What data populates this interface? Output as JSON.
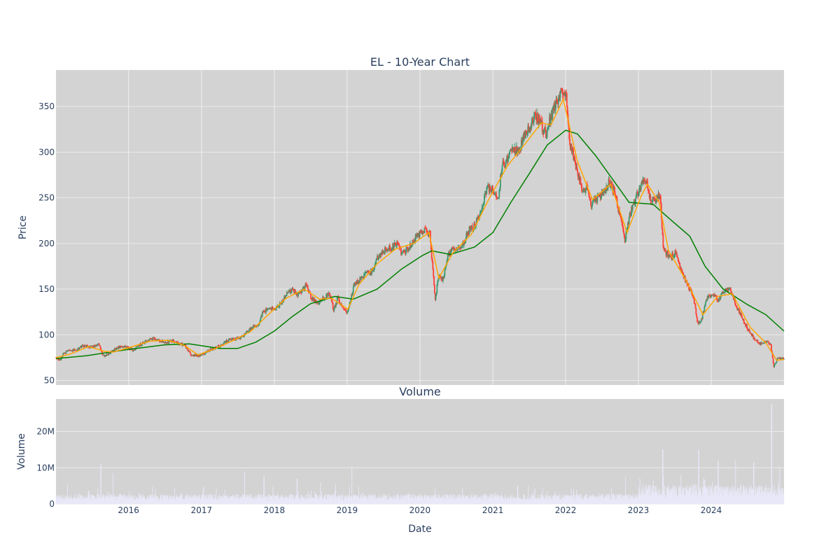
{
  "chart_data": [
    {
      "type": "candlestick",
      "title": "EL - 10-Year Chart",
      "xlabel": "",
      "ylabel": "Price",
      "xlim": [
        "2015-01-02",
        "2024-12-31"
      ],
      "ylim": [
        45,
        390
      ],
      "y_ticks": [
        50,
        100,
        150,
        200,
        250,
        300,
        350
      ],
      "grid": true,
      "background": "#d3d3d3",
      "colors": {
        "up": "#3d9970",
        "down": "#ff4136",
        "ma_short": "#ffa500",
        "ma_long": "#008000"
      },
      "price_path": [
        [
          "2015-01-02",
          75
        ],
        [
          "2015-01-20",
          72
        ],
        [
          "2015-02-10",
          80
        ],
        [
          "2015-03-15",
          83
        ],
        [
          "2015-04-15",
          84
        ],
        [
          "2015-05-20",
          88
        ],
        [
          "2015-06-20",
          87
        ],
        [
          "2015-07-20",
          88
        ],
        [
          "2015-08-05",
          90
        ],
        [
          "2015-08-25",
          77
        ],
        [
          "2015-09-15",
          78
        ],
        [
          "2015-10-15",
          83
        ],
        [
          "2015-11-10",
          86
        ],
        [
          "2015-12-10",
          87
        ],
        [
          "2016-01-05",
          85
        ],
        [
          "2016-01-25",
          83
        ],
        [
          "2016-02-20",
          88
        ],
        [
          "2016-03-20",
          92
        ],
        [
          "2016-04-20",
          95
        ],
        [
          "2016-05-10",
          96
        ],
        [
          "2016-06-10",
          93
        ],
        [
          "2016-07-10",
          92
        ],
        [
          "2016-08-10",
          93
        ],
        [
          "2016-09-10",
          90
        ],
        [
          "2016-10-10",
          88
        ],
        [
          "2016-11-10",
          78
        ],
        [
          "2016-12-10",
          77
        ],
        [
          "2017-01-10",
          79
        ],
        [
          "2017-02-15",
          84
        ],
        [
          "2017-03-15",
          86
        ],
        [
          "2017-04-15",
          89
        ],
        [
          "2017-05-15",
          94
        ],
        [
          "2017-06-15",
          96
        ],
        [
          "2017-07-15",
          97
        ],
        [
          "2017-08-15",
          103
        ],
        [
          "2017-09-15",
          108
        ],
        [
          "2017-10-15",
          110
        ],
        [
          "2017-11-01",
          124
        ],
        [
          "2017-12-01",
          128
        ],
        [
          "2018-01-05",
          128
        ],
        [
          "2018-02-05",
          135
        ],
        [
          "2018-03-05",
          145
        ],
        [
          "2018-04-05",
          150
        ],
        [
          "2018-04-25",
          143
        ],
        [
          "2018-05-25",
          150
        ],
        [
          "2018-06-10",
          155
        ],
        [
          "2018-07-05",
          140
        ],
        [
          "2018-08-05",
          135
        ],
        [
          "2018-09-05",
          140
        ],
        [
          "2018-10-05",
          145
        ],
        [
          "2018-10-25",
          128
        ],
        [
          "2018-11-15",
          140
        ],
        [
          "2018-12-10",
          128
        ],
        [
          "2019-01-05",
          125
        ],
        [
          "2019-02-05",
          155
        ],
        [
          "2019-03-05",
          160
        ],
        [
          "2019-04-05",
          168
        ],
        [
          "2019-05-05",
          170
        ],
        [
          "2019-06-05",
          185
        ],
        [
          "2019-07-05",
          192
        ],
        [
          "2019-08-05",
          195
        ],
        [
          "2019-09-05",
          200
        ],
        [
          "2019-10-05",
          188
        ],
        [
          "2019-11-05",
          195
        ],
        [
          "2019-12-05",
          205
        ],
        [
          "2020-01-20",
          215
        ],
        [
          "2020-02-20",
          210
        ],
        [
          "2020-03-18",
          140
        ],
        [
          "2020-04-05",
          165
        ],
        [
          "2020-04-25",
          160
        ],
        [
          "2020-05-20",
          185
        ],
        [
          "2020-06-10",
          195
        ],
        [
          "2020-07-05",
          192
        ],
        [
          "2020-08-05",
          200
        ],
        [
          "2020-09-05",
          215
        ],
        [
          "2020-10-05",
          220
        ],
        [
          "2020-11-05",
          240
        ],
        [
          "2020-12-05",
          262
        ],
        [
          "2021-01-05",
          258
        ],
        [
          "2021-01-25",
          245
        ],
        [
          "2021-02-15",
          285
        ],
        [
          "2021-03-15",
          292
        ],
        [
          "2021-04-15",
          305
        ],
        [
          "2021-05-10",
          300
        ],
        [
          "2021-06-05",
          315
        ],
        [
          "2021-07-05",
          328
        ],
        [
          "2021-08-05",
          340
        ],
        [
          "2021-09-05",
          328
        ],
        [
          "2021-09-25",
          320
        ],
        [
          "2021-10-20",
          340
        ],
        [
          "2021-11-15",
          355
        ],
        [
          "2021-12-15",
          370
        ],
        [
          "2022-01-05",
          358
        ],
        [
          "2022-01-20",
          310
        ],
        [
          "2022-02-10",
          295
        ],
        [
          "2022-03-05",
          275
        ],
        [
          "2022-03-25",
          258
        ],
        [
          "2022-04-15",
          262
        ],
        [
          "2022-05-10",
          240
        ],
        [
          "2022-05-30",
          248
        ],
        [
          "2022-06-20",
          250
        ],
        [
          "2022-07-10",
          255
        ],
        [
          "2022-08-05",
          268
        ],
        [
          "2022-09-05",
          255
        ],
        [
          "2022-10-05",
          225
        ],
        [
          "2022-10-25",
          205
        ],
        [
          "2022-11-20",
          232
        ],
        [
          "2022-12-20",
          250
        ],
        [
          "2023-01-20",
          268
        ],
        [
          "2023-02-10",
          270
        ],
        [
          "2023-03-05",
          245
        ],
        [
          "2023-04-01",
          248
        ],
        [
          "2023-04-20",
          255
        ],
        [
          "2023-05-05",
          195
        ],
        [
          "2023-06-05",
          185
        ],
        [
          "2023-07-05",
          190
        ],
        [
          "2023-08-05",
          170
        ],
        [
          "2023-09-05",
          155
        ],
        [
          "2023-10-05",
          140
        ],
        [
          "2023-10-25",
          112
        ],
        [
          "2023-11-15",
          118
        ],
        [
          "2023-12-10",
          140
        ],
        [
          "2024-01-05",
          145
        ],
        [
          "2024-02-05",
          138
        ],
        [
          "2024-03-05",
          148
        ],
        [
          "2024-04-05",
          150
        ],
        [
          "2024-05-05",
          132
        ],
        [
          "2024-06-05",
          118
        ],
        [
          "2024-07-05",
          105
        ],
        [
          "2024-08-05",
          95
        ],
        [
          "2024-09-05",
          90
        ],
        [
          "2024-10-05",
          92
        ],
        [
          "2024-10-25",
          90
        ],
        [
          "2024-11-10",
          65
        ],
        [
          "2024-12-01",
          75
        ],
        [
          "2024-12-31",
          74
        ]
      ],
      "ma_short_path": [
        [
          "2015-01-02",
          75
        ],
        [
          "2015-03-15",
          79
        ],
        [
          "2015-06-15",
          87
        ],
        [
          "2015-09-01",
          82
        ],
        [
          "2015-10-15",
          81
        ],
        [
          "2016-01-05",
          86
        ],
        [
          "2016-04-15",
          93
        ],
        [
          "2016-07-15",
          94
        ],
        [
          "2016-10-01",
          89
        ],
        [
          "2016-12-15",
          78
        ],
        [
          "2017-03-01",
          84
        ],
        [
          "2017-06-01",
          93
        ],
        [
          "2017-09-01",
          103
        ],
        [
          "2017-12-01",
          122
        ],
        [
          "2018-03-01",
          140
        ],
        [
          "2018-06-01",
          150
        ],
        [
          "2018-08-15",
          139
        ],
        [
          "2018-10-15",
          140
        ],
        [
          "2019-01-05",
          128
        ],
        [
          "2019-03-01",
          155
        ],
        [
          "2019-06-01",
          178
        ],
        [
          "2019-09-01",
          194
        ],
        [
          "2019-12-01",
          200
        ],
        [
          "2020-02-15",
          212
        ],
        [
          "2020-04-05",
          162
        ],
        [
          "2020-06-15",
          190
        ],
        [
          "2020-09-15",
          210
        ],
        [
          "2020-12-15",
          250
        ],
        [
          "2021-03-15",
          285
        ],
        [
          "2021-06-15",
          310
        ],
        [
          "2021-09-01",
          332
        ],
        [
          "2021-10-20",
          330
        ],
        [
          "2021-12-20",
          358
        ],
        [
          "2022-03-01",
          290
        ],
        [
          "2022-05-15",
          248
        ],
        [
          "2022-08-15",
          265
        ],
        [
          "2022-11-05",
          212
        ],
        [
          "2023-01-15",
          252
        ],
        [
          "2023-02-15",
          265
        ],
        [
          "2023-04-15",
          245
        ],
        [
          "2023-06-01",
          192
        ],
        [
          "2023-09-01",
          158
        ],
        [
          "2023-11-20",
          122
        ],
        [
          "2024-02-01",
          142
        ],
        [
          "2024-04-15",
          145
        ],
        [
          "2024-07-15",
          108
        ],
        [
          "2024-10-01",
          91
        ],
        [
          "2024-11-25",
          72
        ],
        [
          "2024-12-31",
          73
        ]
      ],
      "ma_long_path": [
        [
          "2015-01-02",
          74
        ],
        [
          "2015-06-01",
          77
        ],
        [
          "2016-01-01",
          84
        ],
        [
          "2016-07-01",
          89
        ],
        [
          "2016-11-01",
          90
        ],
        [
          "2017-04-01",
          85
        ],
        [
          "2017-07-01",
          85
        ],
        [
          "2017-10-01",
          92
        ],
        [
          "2018-01-01",
          104
        ],
        [
          "2018-04-01",
          120
        ],
        [
          "2018-07-01",
          134
        ],
        [
          "2018-11-01",
          142
        ],
        [
          "2019-02-01",
          139
        ],
        [
          "2019-06-01",
          150
        ],
        [
          "2019-10-01",
          172
        ],
        [
          "2020-01-15",
          187
        ],
        [
          "2020-03-01",
          192
        ],
        [
          "2020-06-01",
          188
        ],
        [
          "2020-10-01",
          196
        ],
        [
          "2021-01-01",
          212
        ],
        [
          "2021-04-01",
          245
        ],
        [
          "2021-07-01",
          276
        ],
        [
          "2021-10-01",
          308
        ],
        [
          "2022-01-01",
          324
        ],
        [
          "2022-03-01",
          320
        ],
        [
          "2022-06-01",
          296
        ],
        [
          "2022-09-01",
          268
        ],
        [
          "2022-11-15",
          245
        ],
        [
          "2023-03-15",
          243
        ],
        [
          "2023-06-01",
          228
        ],
        [
          "2023-09-15",
          208
        ],
        [
          "2023-12-01",
          175
        ],
        [
          "2024-03-01",
          150
        ],
        [
          "2024-07-01",
          133
        ],
        [
          "2024-10-01",
          122
        ],
        [
          "2024-12-31",
          104
        ]
      ]
    },
    {
      "type": "bar",
      "title": "Volume",
      "xlabel": "Date",
      "ylabel": "Volume",
      "xlim": [
        "2015-01-02",
        "2024-12-31"
      ],
      "ylim": [
        0,
        29
      ],
      "unit": "M",
      "y_ticks": [
        0,
        10,
        20
      ],
      "y_tick_labels": [
        "0",
        "10M",
        "20M"
      ],
      "x_ticks": [
        "2016-01-01",
        "2017-01-01",
        "2018-01-01",
        "2019-01-01",
        "2020-01-01",
        "2021-01-01",
        "2022-01-01",
        "2023-01-01",
        "2024-01-01"
      ],
      "x_tick_labels": [
        "2016",
        "2017",
        "2018",
        "2019",
        "2020",
        "2021",
        "2022",
        "2023",
        "2024"
      ],
      "grid": true,
      "background": "#d3d3d3",
      "bar_color": "#e9e8f8",
      "spikes": [
        [
          "2015-03-01",
          5.5
        ],
        [
          "2015-08-15",
          11
        ],
        [
          "2015-10-15",
          8.5
        ],
        [
          "2017-08-05",
          9
        ],
        [
          "2017-11-10",
          7.5
        ],
        [
          "2018-04-25",
          7
        ],
        [
          "2018-08-20",
          6
        ],
        [
          "2019-01-25",
          10.5
        ],
        [
          "2020-03-18",
          4.5
        ],
        [
          "2021-05-05",
          5
        ],
        [
          "2022-10-28",
          7.5
        ],
        [
          "2023-05-03",
          15
        ],
        [
          "2023-08-02",
          8
        ],
        [
          "2023-10-30",
          15
        ],
        [
          "2023-11-25",
          7
        ],
        [
          "2024-02-05",
          12
        ],
        [
          "2024-05-02",
          12
        ],
        [
          "2024-08-01",
          11.5
        ],
        [
          "2024-10-30",
          27.5
        ],
        [
          "2024-12-10",
          10
        ]
      ]
    }
  ]
}
